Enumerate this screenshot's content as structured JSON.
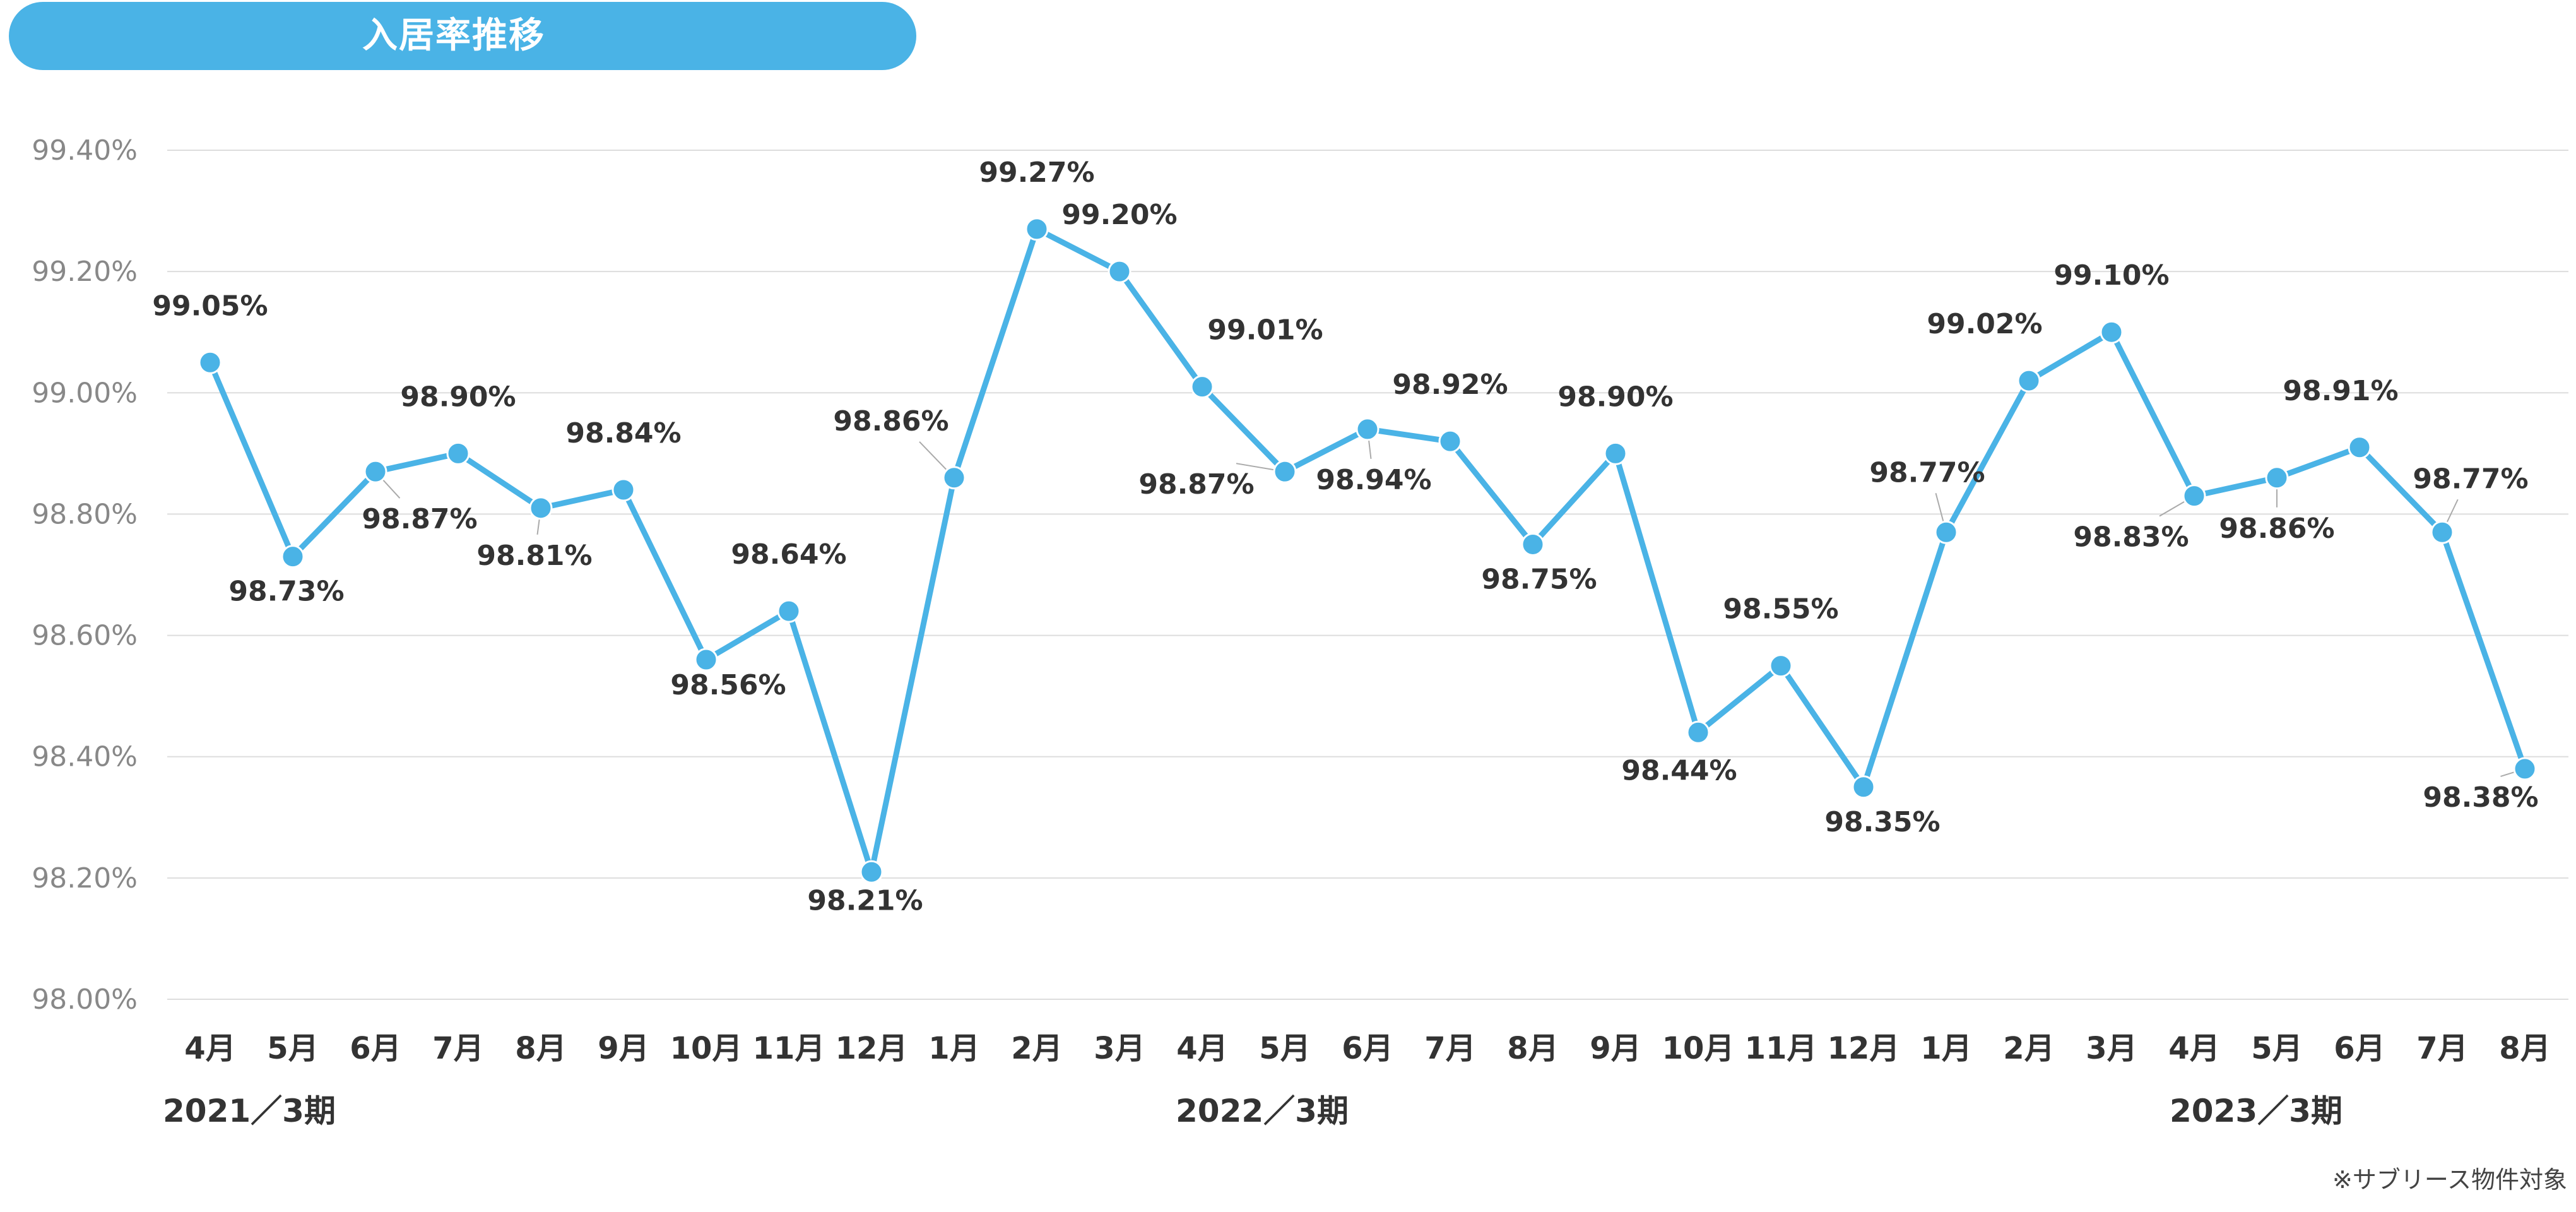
{
  "title": "入居率推移",
  "note": "※サブリース物件対象",
  "colors": {
    "line": "#4ab3e6",
    "grid": "#dddddd",
    "axis_text": "#888888",
    "label_text": "#333333",
    "pill": "#4ab3e6"
  },
  "chart_data": {
    "type": "line",
    "title": "入居率推移",
    "ylim": [
      98.0,
      99.4
    ],
    "y_ticks": [
      "99.40%",
      "99.20%",
      "99.00%",
      "98.80%",
      "98.60%",
      "98.40%",
      "98.20%",
      "98.00%"
    ],
    "y_tick_values": [
      99.4,
      99.2,
      99.0,
      98.8,
      98.6,
      98.4,
      98.2,
      98.0
    ],
    "grid": true,
    "categories": [
      "4月",
      "5月",
      "6月",
      "7月",
      "8月",
      "9月",
      "10月",
      "11月",
      "12月",
      "1月",
      "2月",
      "3月",
      "4月",
      "5月",
      "6月",
      "7月",
      "8月",
      "9月",
      "10月",
      "11月",
      "12月",
      "1月",
      "2月",
      "3月",
      "4月",
      "5月",
      "6月",
      "7月",
      "8月"
    ],
    "group_labels": [
      "2021／3期",
      "2022／3期",
      "2023／3期"
    ],
    "values": [
      99.05,
      98.73,
      98.87,
      98.9,
      98.81,
      98.84,
      98.56,
      98.64,
      98.21,
      98.86,
      99.27,
      99.2,
      99.01,
      98.87,
      98.94,
      98.92,
      98.75,
      98.9,
      98.44,
      98.55,
      98.35,
      98.77,
      99.02,
      99.1,
      98.83,
      98.86,
      98.91,
      98.77,
      98.38
    ],
    "data_labels": [
      "99.05%",
      "98.73%",
      "98.87%",
      "98.90%",
      "98.81%",
      "98.84%",
      "98.56%",
      "98.64%",
      "98.21%",
      "98.86%",
      "99.27%",
      "99.20%",
      "99.01%",
      "98.87%",
      "98.94%",
      "98.92%",
      "98.75%",
      "98.90%",
      "98.44%",
      "98.55%",
      "98.35%",
      "98.77%",
      "99.02%",
      "99.10%",
      "98.83%",
      "98.86%",
      "98.91%",
      "98.77%",
      "98.38%"
    ]
  }
}
